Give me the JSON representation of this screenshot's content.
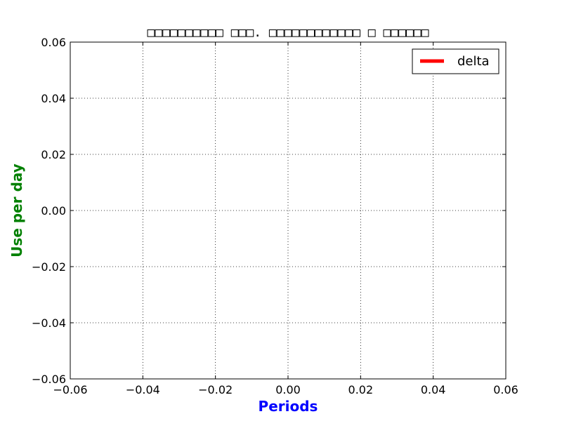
{
  "chart_data": {
    "type": "line",
    "title": "□□□□□□□□□□ □□□. □□□□□□□□□□□□ □ □□□□□□",
    "xlabel": "Periods",
    "ylabel": "Use per day",
    "xlabel_color": "#0000ff",
    "ylabel_color": "#008000",
    "xlim": [
      -0.06,
      0.06
    ],
    "ylim": [
      -0.06,
      0.06
    ],
    "x_ticks": [
      -0.06,
      -0.04,
      -0.02,
      0.0,
      0.02,
      0.04,
      0.06
    ],
    "y_ticks": [
      -0.06,
      -0.04,
      -0.02,
      0.0,
      0.02,
      0.04,
      0.06
    ],
    "x_tick_labels": [
      "−0.06",
      "−0.04",
      "−0.02",
      "0.00",
      "0.02",
      "0.04",
      "0.06"
    ],
    "y_tick_labels": [
      "−0.06",
      "−0.04",
      "−0.02",
      "0.00",
      "0.02",
      "0.04",
      "0.06"
    ],
    "grid": true,
    "legend_position": "top-right",
    "series": [
      {
        "name": "delta",
        "color": "#ff0000",
        "x": [],
        "y": []
      }
    ]
  }
}
